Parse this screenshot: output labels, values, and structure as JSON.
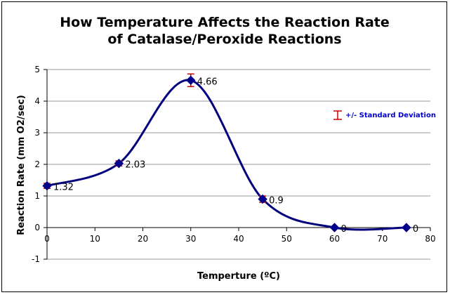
{
  "chart_data": {
    "type": "line",
    "title_lines": [
      "How Temperature Affects the Reaction Rate",
      "of Catalase/Peroxide Reactions"
    ],
    "xlabel": "Temperture (ºC)",
    "ylabel": "Reaction Rate (mm O2/sec)",
    "xlim": [
      0,
      80
    ],
    "ylim": [
      -1,
      5
    ],
    "x_ticks": [
      0,
      10,
      20,
      30,
      40,
      50,
      60,
      70,
      80
    ],
    "y_ticks": [
      -1,
      0,
      1,
      2,
      3,
      4,
      5
    ],
    "x_tick_labels": [
      "0",
      "10",
      "20",
      "30",
      "40",
      "50",
      "60",
      "70",
      "80"
    ],
    "y_tick_labels": [
      "-1",
      "0",
      "1",
      "2",
      "3",
      "4",
      "5"
    ],
    "grid": "horizontal",
    "smoothed": true,
    "series": [
      {
        "x": [
          0,
          15,
          30,
          45,
          60,
          75
        ],
        "y": [
          1.32,
          2.03,
          4.66,
          0.9,
          0,
          0
        ],
        "labels": [
          "1.32",
          "2.03",
          "4.66",
          "0.9",
          "0",
          "0"
        ],
        "error": [
          0.08,
          0.08,
          0.2,
          0.1,
          0,
          0
        ],
        "line_color": "#00007f",
        "marker_color": "#00008b",
        "marker": "diamond"
      }
    ],
    "legend": {
      "position": "right",
      "label": "+/- Standard Deviation",
      "text_color": "#0000cc",
      "error_bar_color": "#cc0000"
    }
  }
}
